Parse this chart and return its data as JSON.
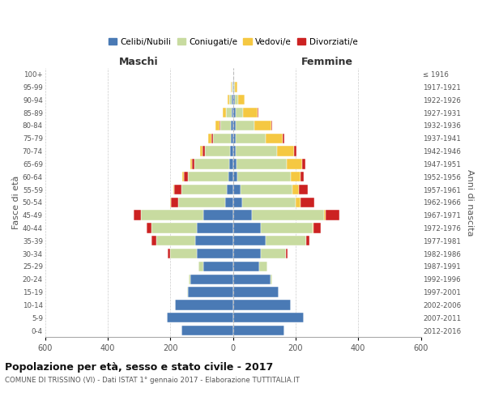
{
  "age_groups": [
    "0-4",
    "5-9",
    "10-14",
    "15-19",
    "20-24",
    "25-29",
    "30-34",
    "35-39",
    "40-44",
    "45-49",
    "50-54",
    "55-59",
    "60-64",
    "65-69",
    "70-74",
    "75-79",
    "80-84",
    "85-89",
    "90-94",
    "95-99",
    "100+"
  ],
  "birth_years": [
    "2012-2016",
    "2007-2011",
    "2002-2006",
    "1997-2001",
    "1992-1996",
    "1987-1991",
    "1982-1986",
    "1977-1981",
    "1972-1976",
    "1967-1971",
    "1962-1966",
    "1957-1961",
    "1952-1956",
    "1947-1951",
    "1942-1946",
    "1937-1941",
    "1932-1936",
    "1927-1931",
    "1922-1926",
    "1917-1921",
    "≤ 1916"
  ],
  "maschi_celibi": [
    165,
    210,
    185,
    145,
    135,
    95,
    115,
    120,
    115,
    95,
    25,
    20,
    14,
    12,
    10,
    8,
    6,
    5,
    3,
    2,
    0
  ],
  "maschi_coniugati": [
    0,
    0,
    0,
    2,
    5,
    15,
    85,
    125,
    145,
    200,
    150,
    145,
    130,
    110,
    80,
    55,
    35,
    18,
    8,
    3,
    0
  ],
  "maschi_vedovi": [
    0,
    0,
    0,
    0,
    0,
    0,
    0,
    0,
    0,
    0,
    3,
    3,
    5,
    5,
    8,
    10,
    12,
    10,
    5,
    2,
    0
  ],
  "maschi_divorziati": [
    0,
    0,
    0,
    0,
    0,
    0,
    8,
    15,
    15,
    22,
    22,
    22,
    12,
    10,
    8,
    5,
    2,
    0,
    0,
    0,
    0
  ],
  "femmine_celibi": [
    165,
    225,
    185,
    145,
    120,
    85,
    90,
    105,
    90,
    60,
    30,
    25,
    15,
    12,
    10,
    10,
    8,
    8,
    5,
    2,
    0
  ],
  "femmine_coniugati": [
    0,
    0,
    0,
    2,
    5,
    25,
    80,
    130,
    165,
    230,
    170,
    165,
    170,
    160,
    130,
    95,
    60,
    25,
    12,
    4,
    0
  ],
  "femmine_vedovi": [
    0,
    0,
    0,
    0,
    0,
    0,
    0,
    0,
    3,
    5,
    15,
    20,
    30,
    50,
    55,
    55,
    55,
    45,
    20,
    8,
    2
  ],
  "femmine_divorziati": [
    0,
    0,
    0,
    0,
    0,
    0,
    5,
    10,
    22,
    45,
    45,
    30,
    12,
    10,
    8,
    5,
    3,
    2,
    0,
    0,
    0
  ],
  "color_celibi": "#4a7ab5",
  "color_coniugati": "#c8dba0",
  "color_vedovi": "#f5c842",
  "color_divorziati": "#cc2222",
  "title": "Popolazione per età, sesso e stato civile - 2017",
  "subtitle": "COMUNE DI TRISSINO (VI) - Dati ISTAT 1° gennaio 2017 - Elaborazione TUTTITALIA.IT",
  "label_maschi": "Maschi",
  "label_femmine": "Femmine",
  "ylabel_left": "Fasce di età",
  "ylabel_right": "Anni di nascita",
  "xlim": 600,
  "bg_color": "#ffffff",
  "grid_color": "#cccccc"
}
